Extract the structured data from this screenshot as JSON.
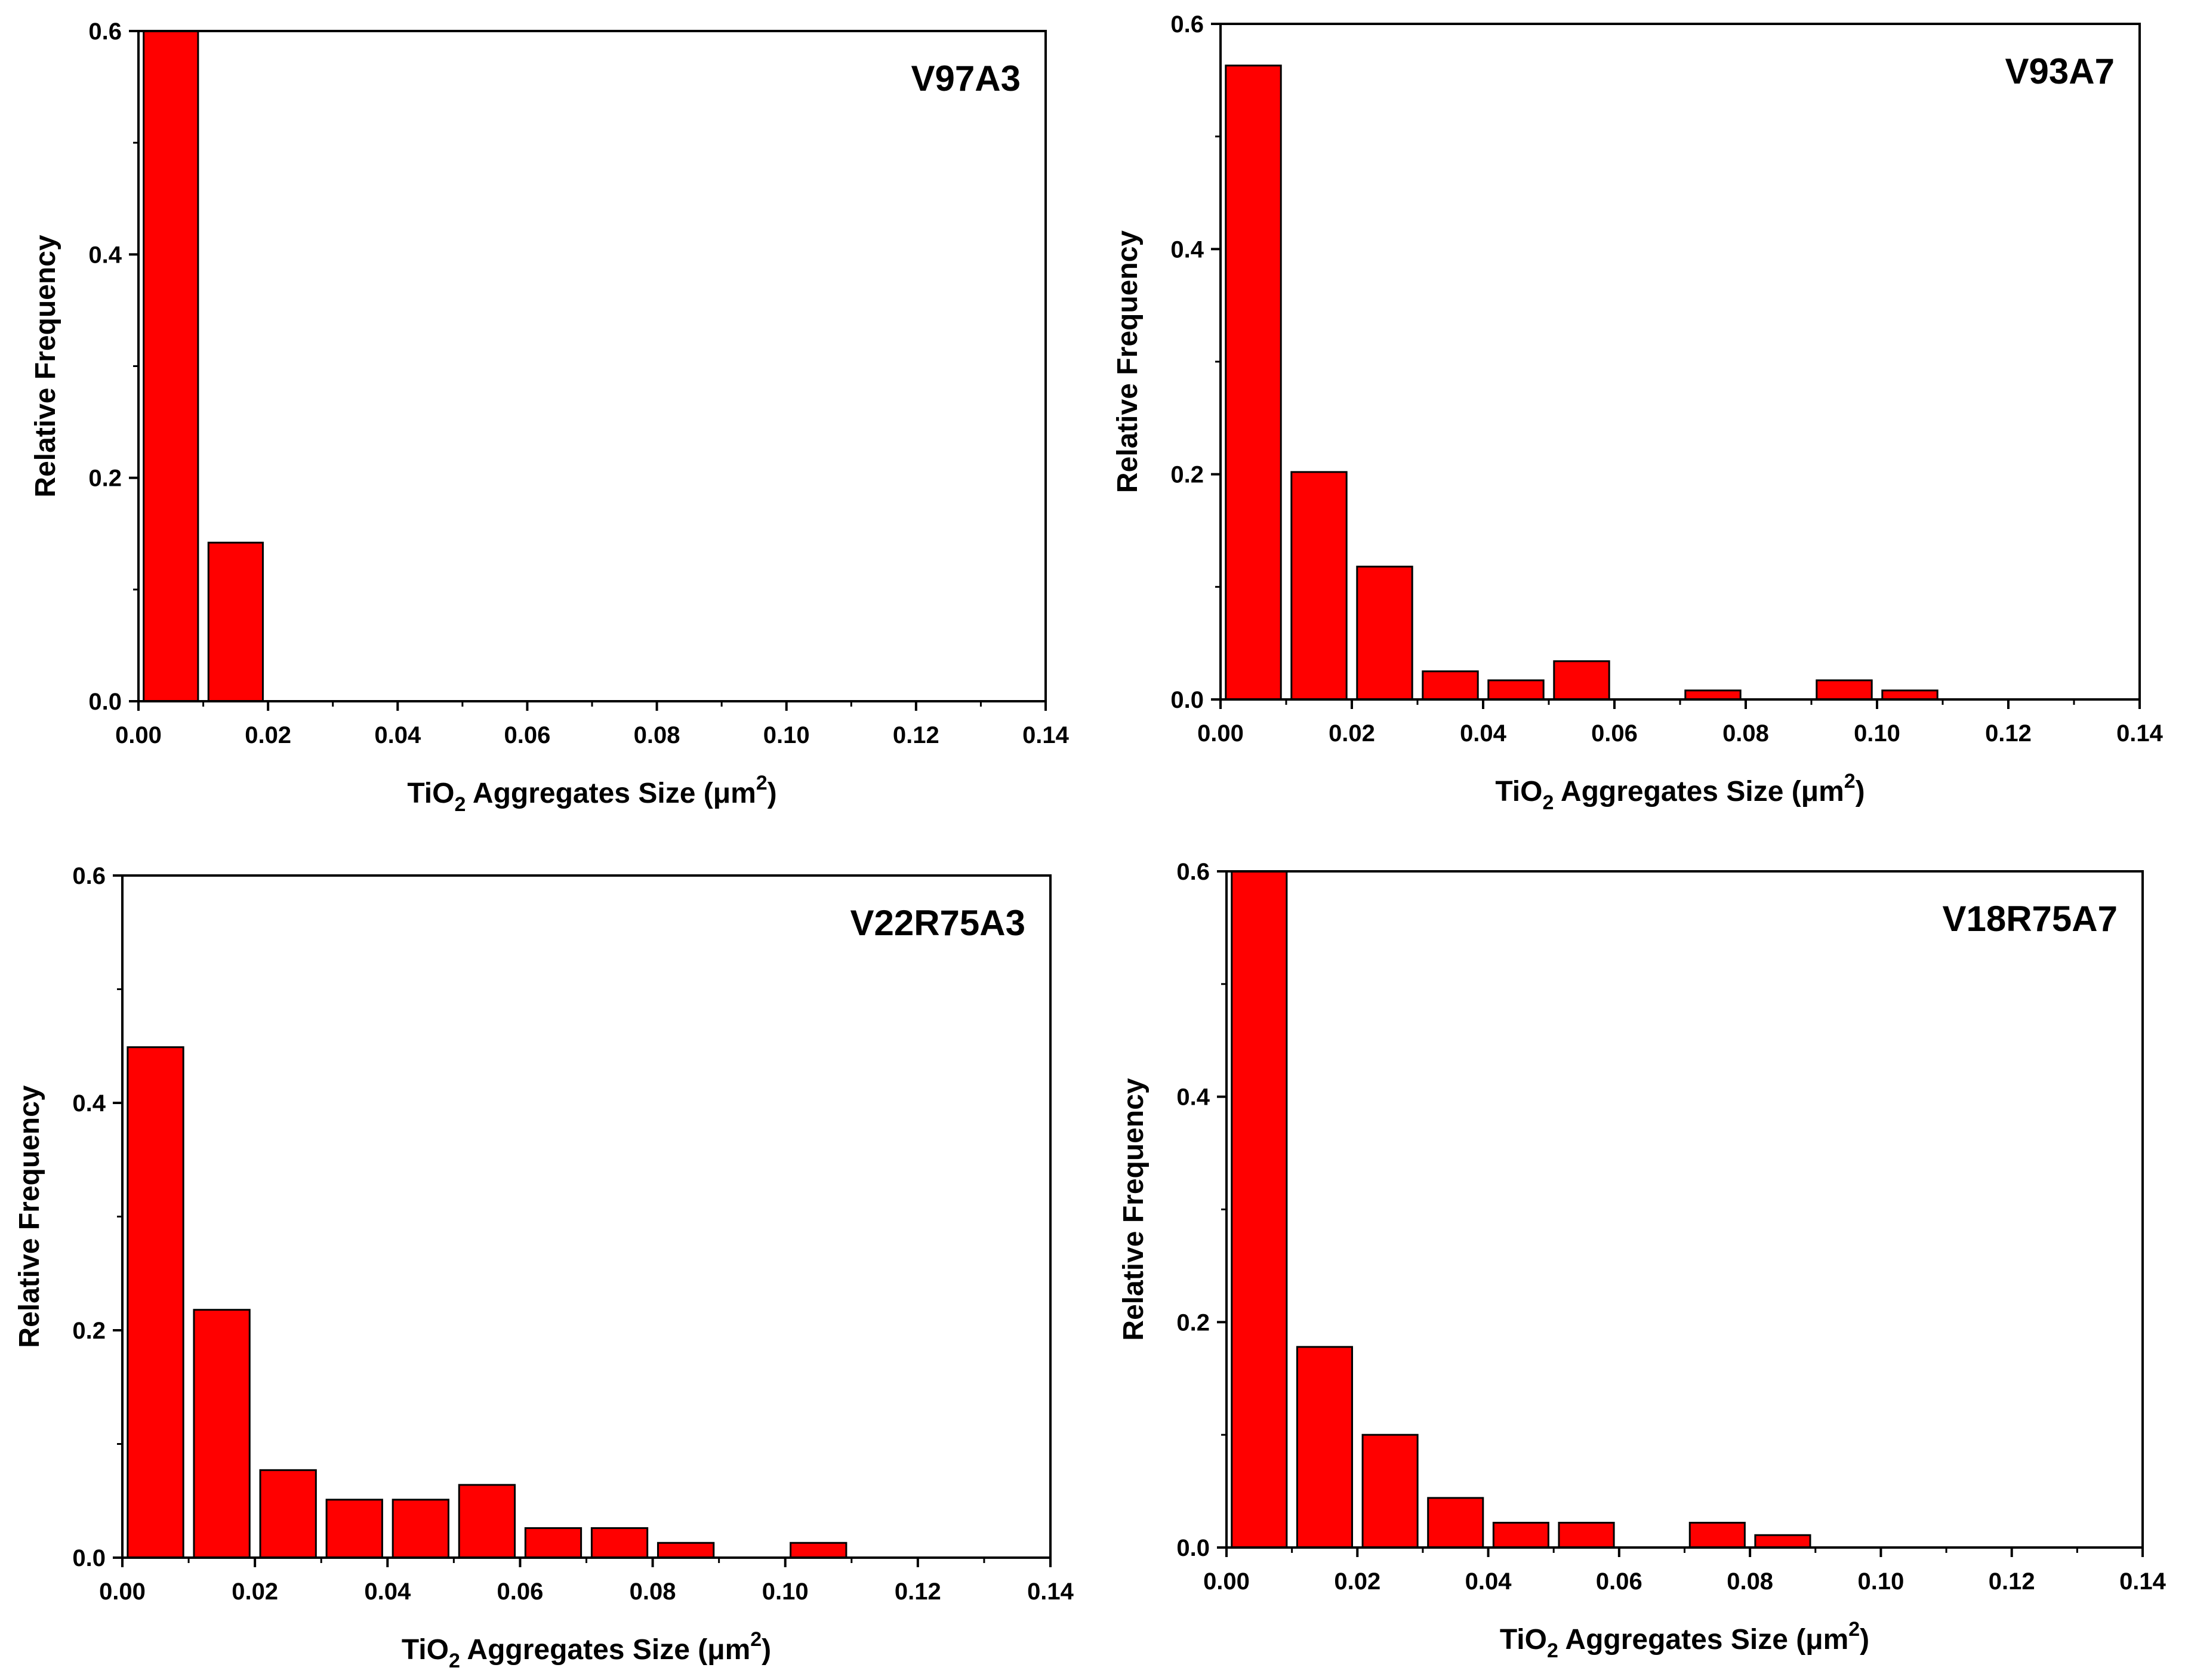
{
  "colors": {
    "bar_fill": "#ff0000",
    "bar_stroke": "#000000",
    "axis": "#000000",
    "background": "#ffffff"
  },
  "chart_data": [
    {
      "type": "bar",
      "title": "V97A3",
      "xlabel": {
        "base": "TiO",
        "sub": "2",
        "mid": " Aggregates Size (",
        "unit": "μm",
        "sup": "2",
        "end": ")"
      },
      "ylabel": "Relative Frequency",
      "xlim": [
        0,
        0.14
      ],
      "ylim": [
        0,
        0.6
      ],
      "xticks": [
        "0.00",
        "0.02",
        "0.04",
        "0.06",
        "0.08",
        "0.10",
        "0.12",
        "0.14"
      ],
      "yticks": [
        "0.0",
        "0.2",
        "0.4",
        "0.6"
      ],
      "bin_width": 0.01,
      "bins": [
        0.0,
        0.01
      ],
      "values": [
        0.6,
        0.142
      ]
    },
    {
      "type": "bar",
      "title": "V93A7",
      "xlabel": {
        "base": "TiO",
        "sub": "2",
        "mid": " Aggregates Size (",
        "unit": "μm",
        "sup": "2",
        "end": ")"
      },
      "ylabel": "Relative Frequency",
      "xlim": [
        0,
        0.14
      ],
      "ylim": [
        0,
        0.6
      ],
      "xticks": [
        "0.00",
        "0.02",
        "0.04",
        "0.06",
        "0.08",
        "0.10",
        "0.12",
        "0.14"
      ],
      "yticks": [
        "0.0",
        "0.2",
        "0.4",
        "0.6"
      ],
      "bin_width": 0.01,
      "bins": [
        0.0,
        0.01,
        0.02,
        0.03,
        0.04,
        0.05,
        0.07,
        0.09,
        0.1
      ],
      "values": [
        0.563,
        0.202,
        0.118,
        0.025,
        0.017,
        0.034,
        0.008,
        0.017,
        0.008
      ]
    },
    {
      "type": "bar",
      "title": "V22R75A3",
      "xlabel": {
        "base": "TiO",
        "sub": "2",
        "mid": " Aggregates Size (",
        "unit": "μm",
        "sup": "2",
        "end": ")"
      },
      "ylabel": "Relative Frequency",
      "xlim": [
        0,
        0.14
      ],
      "ylim": [
        0,
        0.6
      ],
      "xticks": [
        "0.00",
        "0.02",
        "0.04",
        "0.06",
        "0.08",
        "0.10",
        "0.12",
        "0.14"
      ],
      "yticks": [
        "0.0",
        "0.2",
        "0.4",
        "0.6"
      ],
      "bin_width": 0.01,
      "bins": [
        0.0,
        0.01,
        0.02,
        0.03,
        0.04,
        0.05,
        0.06,
        0.07,
        0.08,
        0.1
      ],
      "values": [
        0.449,
        0.218,
        0.077,
        0.051,
        0.051,
        0.064,
        0.026,
        0.026,
        0.013,
        0.013
      ]
    },
    {
      "type": "bar",
      "title": "V18R75A7",
      "xlabel": {
        "base": "TiO",
        "sub": "2",
        "mid": " Aggregates Size (",
        "unit": "μm",
        "sup": "2",
        "end": ")"
      },
      "ylabel": "Relative Frequency",
      "xlim": [
        0,
        0.14
      ],
      "ylim": [
        0,
        0.6
      ],
      "xticks": [
        "0.00",
        "0.02",
        "0.04",
        "0.06",
        "0.08",
        "0.10",
        "0.12",
        "0.14"
      ],
      "yticks": [
        "0.0",
        "0.2",
        "0.4",
        "0.6"
      ],
      "bin_width": 0.01,
      "bins": [
        0.0,
        0.01,
        0.02,
        0.03,
        0.04,
        0.05,
        0.07,
        0.08
      ],
      "values": [
        0.6,
        0.178,
        0.1,
        0.044,
        0.022,
        0.022,
        0.022,
        0.011
      ]
    }
  ]
}
